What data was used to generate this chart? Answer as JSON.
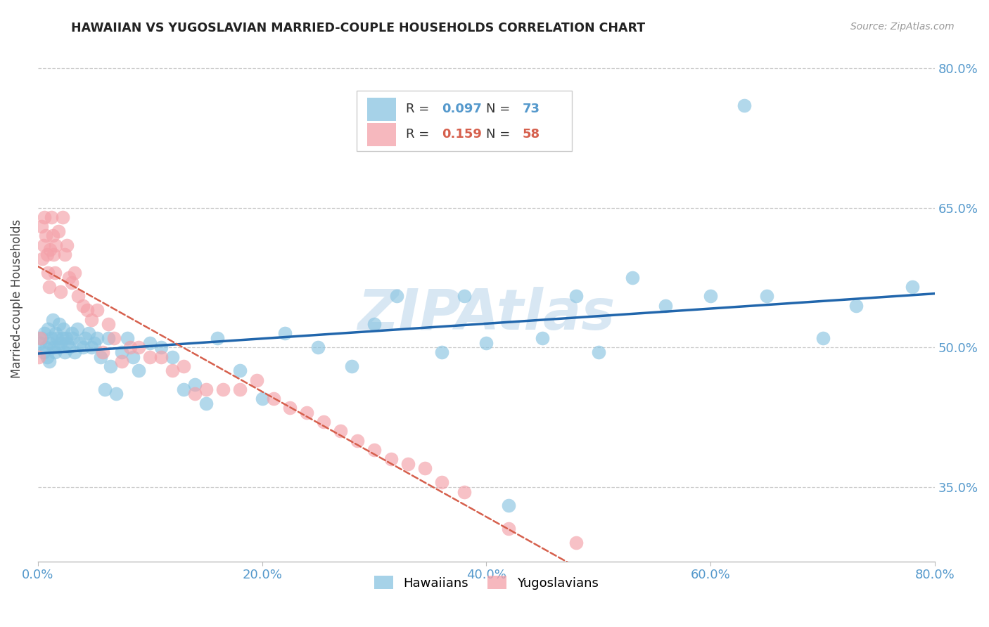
{
  "title": "HAWAIIAN VS YUGOSLAVIAN MARRIED-COUPLE HOUSEHOLDS CORRELATION CHART",
  "source": "Source: ZipAtlas.com",
  "ylabel": "Married-couple Households",
  "xmin": 0.0,
  "xmax": 0.8,
  "ymin": 0.27,
  "ymax": 0.835,
  "xticks": [
    0.0,
    0.2,
    0.4,
    0.6,
    0.8
  ],
  "xticklabels": [
    "0.0%",
    "20.0%",
    "40.0%",
    "60.0%",
    "80.0%"
  ],
  "yticks": [
    0.35,
    0.5,
    0.65,
    0.8
  ],
  "yticklabels": [
    "35.0%",
    "50.0%",
    "65.0%",
    "80.0%"
  ],
  "hawaiian_R": "0.097",
  "hawaiian_N": "73",
  "yugoslav_R": "0.159",
  "yugoslav_N": "58",
  "hawaiian_color": "#89c4e1",
  "yugoslavian_color": "#f4a0a8",
  "hawaiian_line_color": "#2166ac",
  "yugoslavian_line_color": "#d6604d",
  "watermark_color": "#b8d4ea",
  "grid_color": "#cccccc",
  "axis_color": "#5599cc",
  "title_color": "#222222",
  "hawaiians_x": [
    0.002,
    0.003,
    0.005,
    0.006,
    0.007,
    0.008,
    0.009,
    0.01,
    0.01,
    0.012,
    0.013,
    0.014,
    0.015,
    0.016,
    0.017,
    0.018,
    0.019,
    0.02,
    0.022,
    0.023,
    0.024,
    0.025,
    0.026,
    0.028,
    0.03,
    0.031,
    0.033,
    0.035,
    0.037,
    0.04,
    0.042,
    0.045,
    0.048,
    0.05,
    0.053,
    0.056,
    0.06,
    0.063,
    0.065,
    0.07,
    0.075,
    0.08,
    0.085,
    0.09,
    0.1,
    0.11,
    0.12,
    0.13,
    0.14,
    0.15,
    0.16,
    0.18,
    0.2,
    0.22,
    0.25,
    0.28,
    0.3,
    0.32,
    0.36,
    0.38,
    0.4,
    0.42,
    0.45,
    0.48,
    0.5,
    0.53,
    0.56,
    0.6,
    0.63,
    0.65,
    0.7,
    0.73,
    0.78
  ],
  "hawaiians_y": [
    0.505,
    0.51,
    0.495,
    0.515,
    0.5,
    0.49,
    0.52,
    0.505,
    0.485,
    0.51,
    0.53,
    0.5,
    0.495,
    0.515,
    0.51,
    0.5,
    0.525,
    0.505,
    0.51,
    0.52,
    0.495,
    0.51,
    0.505,
    0.5,
    0.515,
    0.51,
    0.495,
    0.52,
    0.505,
    0.5,
    0.51,
    0.515,
    0.5,
    0.505,
    0.51,
    0.49,
    0.455,
    0.51,
    0.48,
    0.45,
    0.495,
    0.51,
    0.49,
    0.475,
    0.505,
    0.5,
    0.49,
    0.455,
    0.46,
    0.44,
    0.51,
    0.475,
    0.445,
    0.515,
    0.5,
    0.48,
    0.525,
    0.555,
    0.495,
    0.555,
    0.505,
    0.33,
    0.51,
    0.555,
    0.495,
    0.575,
    0.545,
    0.555,
    0.76,
    0.555,
    0.51,
    0.545,
    0.565
  ],
  "yugoslavians_x": [
    0.001,
    0.002,
    0.003,
    0.004,
    0.005,
    0.006,
    0.007,
    0.008,
    0.009,
    0.01,
    0.011,
    0.012,
    0.013,
    0.014,
    0.015,
    0.016,
    0.018,
    0.02,
    0.022,
    0.024,
    0.026,
    0.028,
    0.03,
    0.033,
    0.036,
    0.04,
    0.044,
    0.048,
    0.053,
    0.058,
    0.063,
    0.068,
    0.075,
    0.082,
    0.09,
    0.1,
    0.11,
    0.12,
    0.13,
    0.14,
    0.15,
    0.165,
    0.18,
    0.195,
    0.21,
    0.225,
    0.24,
    0.255,
    0.27,
    0.285,
    0.3,
    0.315,
    0.33,
    0.345,
    0.36,
    0.38,
    0.42,
    0.48
  ],
  "yugoslavians_y": [
    0.49,
    0.51,
    0.63,
    0.595,
    0.61,
    0.64,
    0.62,
    0.6,
    0.58,
    0.565,
    0.605,
    0.64,
    0.62,
    0.6,
    0.58,
    0.61,
    0.625,
    0.56,
    0.64,
    0.6,
    0.61,
    0.575,
    0.57,
    0.58,
    0.555,
    0.545,
    0.54,
    0.53,
    0.54,
    0.495,
    0.525,
    0.51,
    0.485,
    0.5,
    0.5,
    0.49,
    0.49,
    0.475,
    0.48,
    0.45,
    0.455,
    0.455,
    0.455,
    0.465,
    0.445,
    0.435,
    0.43,
    0.42,
    0.41,
    0.4,
    0.39,
    0.38,
    0.375,
    0.37,
    0.355,
    0.345,
    0.305,
    0.29
  ]
}
